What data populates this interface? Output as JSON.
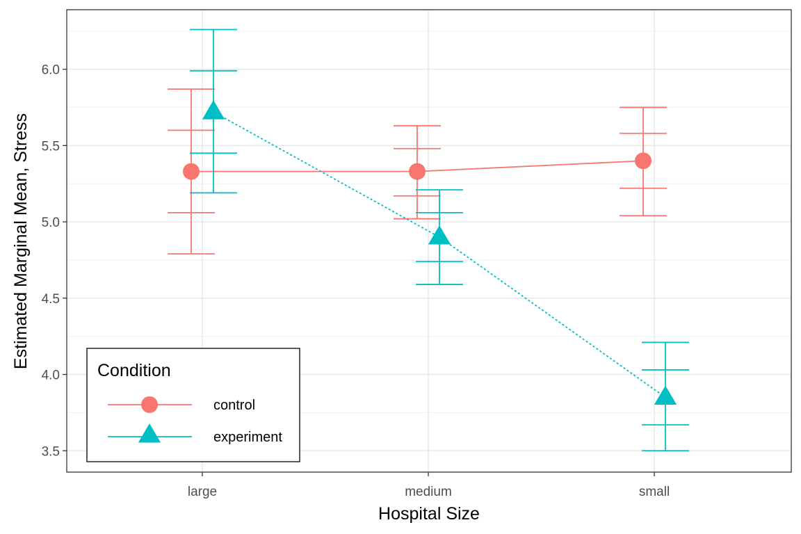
{
  "chart_data": {
    "type": "line",
    "title": "",
    "xlabel": "Hospital Size",
    "ylabel": "Estimated Marginal Mean, Stress",
    "categories": [
      "large",
      "medium",
      "small"
    ],
    "ylim": [
      3.36,
      6.39
    ],
    "yticks": [
      3.5,
      4.0,
      4.5,
      5.0,
      5.5,
      6.0
    ],
    "ytick_labels": [
      "3.5",
      "4.0",
      "4.5",
      "5.0",
      "5.5",
      "6.0"
    ],
    "grid": true,
    "legend": {
      "title": "Condition",
      "placement": "bottom-left"
    },
    "series": [
      {
        "name": "control",
        "color": "#F8766D",
        "marker": "circle",
        "line": "solid",
        "values": [
          5.33,
          5.33,
          5.4
        ],
        "inner_lower": [
          5.06,
          5.17,
          5.22
        ],
        "inner_upper": [
          5.6,
          5.48,
          5.58
        ],
        "outer_lower": [
          4.79,
          5.02,
          5.04
        ],
        "outer_upper": [
          5.87,
          5.63,
          5.75
        ]
      },
      {
        "name": "experiment",
        "color": "#00BFC4",
        "marker": "triangle",
        "line": "dotted",
        "values": [
          5.72,
          4.9,
          3.85
        ],
        "inner_lower": [
          5.45,
          4.74,
          3.67
        ],
        "inner_upper": [
          5.99,
          5.06,
          4.03
        ],
        "outer_lower": [
          5.19,
          4.59,
          3.5
        ],
        "outer_upper": [
          6.26,
          5.21,
          4.21
        ]
      }
    ]
  }
}
